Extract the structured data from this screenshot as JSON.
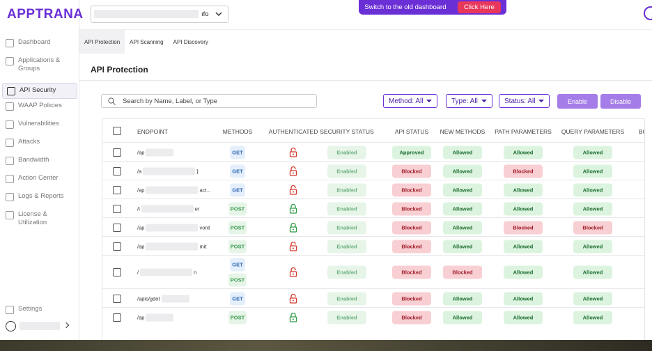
{
  "brand": "APPTRANA",
  "banner": {
    "text": "Switch to the old dashboard",
    "button": "Click Here"
  },
  "selector": "ıfo",
  "sidebar": {
    "items": [
      {
        "label": "Dashboard"
      },
      {
        "label": "Applications & Groups"
      },
      {
        "label": "API Security",
        "active": true
      },
      {
        "label": "WAAP Policies"
      },
      {
        "label": "Vulnerabilities"
      },
      {
        "label": "Attacks"
      },
      {
        "label": "Bandwidth"
      },
      {
        "label": "Action Center"
      },
      {
        "label": "Logs & Reports"
      },
      {
        "label": "License & Utilization"
      }
    ],
    "settings": "Settings"
  },
  "tabs": [
    {
      "label": "API Protection",
      "active": true
    },
    {
      "label": "API Scanning"
    },
    {
      "label": "API Discovery"
    }
  ],
  "heading": "API Protection",
  "search": "Search by Name, Label, or Type",
  "filters": [
    "Method: All",
    "Type: All",
    "Status: All"
  ],
  "actions": [
    "Enable",
    "Disable"
  ],
  "table": {
    "columns": [
      "ENDPOINT",
      "METHODS",
      "AUTHENTICATED",
      "SECURITY STATUS",
      "API STATUS",
      "NEW METHODS",
      "PATH PARAMETERS",
      "QUERY PARAMETERS",
      "BO"
    ],
    "rows": [
      {
        "endpoint": [
          "/ap"
        ],
        "methods": [
          "GET"
        ],
        "authenticated": false,
        "security": "Enabled",
        "api": "Approved",
        "new": "Allowed",
        "path": "Allowed",
        "query": "Allowed"
      },
      {
        "endpoint": [
          "/a",
          "}"
        ],
        "methods": [
          "GET"
        ],
        "authenticated": false,
        "security": "Enabled",
        "api": "Blocked",
        "new": "Allowed",
        "path": "Blocked",
        "query": "Allowed"
      },
      {
        "endpoint": [
          "/ap",
          "act..."
        ],
        "methods": [
          "GET"
        ],
        "authenticated": false,
        "security": "Enabled",
        "api": "Blocked",
        "new": "Allowed",
        "path": "Allowed",
        "query": "Allowed"
      },
      {
        "endpoint": [
          "/i",
          "er"
        ],
        "methods": [
          "POST"
        ],
        "authenticated": true,
        "security": "Enabled",
        "api": "Blocked",
        "new": "Allowed",
        "path": "Allowed",
        "query": "Allowed"
      },
      {
        "endpoint": [
          "/ap",
          "vord"
        ],
        "methods": [
          "POST"
        ],
        "authenticated": true,
        "security": "Enabled",
        "api": "Blocked",
        "new": "Allowed",
        "path": "Blocked",
        "query": "Blocked"
      },
      {
        "endpoint": [
          "/ap",
          "mit"
        ],
        "methods": [
          "POST"
        ],
        "authenticated": false,
        "security": "Enabled",
        "api": "Blocked",
        "new": "Allowed",
        "path": "Allowed",
        "query": "Allowed"
      },
      {
        "endpoint": [
          "/",
          "n"
        ],
        "methods": [
          "GET",
          "POST"
        ],
        "authenticated": false,
        "security": "Enabled",
        "api": "Blocked",
        "new": "Blocked",
        "path": "Allowed",
        "query": "Allowed"
      },
      {
        "endpoint": [
          "/apis/gdot"
        ],
        "methods": [
          "GET"
        ],
        "authenticated": false,
        "security": "Enabled",
        "api": "Blocked",
        "new": "Allowed",
        "path": "Allowed",
        "query": "Allowed"
      },
      {
        "endpoint": [
          "/ap"
        ],
        "methods": [
          "POST"
        ],
        "authenticated": true,
        "security": "Enabled",
        "api": "Blocked",
        "new": "Allowed",
        "path": "Allowed",
        "query": "Allowed"
      }
    ]
  }
}
